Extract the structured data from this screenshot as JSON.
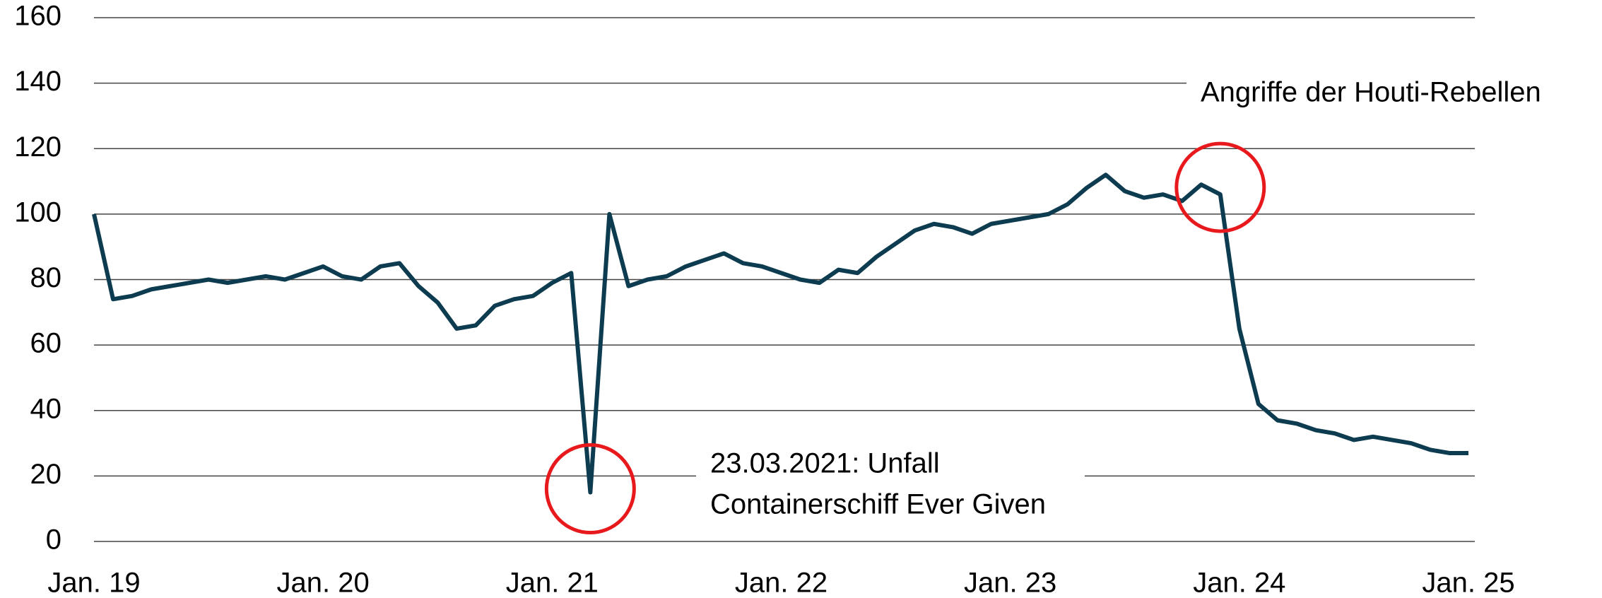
{
  "chart_data": {
    "type": "line",
    "categories": [
      "Jan. 19",
      null,
      null,
      null,
      null,
      null,
      null,
      null,
      null,
      null,
      null,
      null,
      "Jan. 20",
      null,
      null,
      null,
      null,
      null,
      null,
      null,
      null,
      null,
      null,
      null,
      "Jan. 21",
      null,
      null,
      null,
      null,
      null,
      null,
      null,
      null,
      null,
      null,
      null,
      "Jan. 22",
      null,
      null,
      null,
      null,
      null,
      null,
      null,
      null,
      null,
      null,
      null,
      "Jan. 23",
      null,
      null,
      null,
      null,
      null,
      null,
      null,
      null,
      null,
      null,
      null,
      "Jan. 24",
      null,
      null,
      null,
      null,
      null,
      null,
      null,
      null,
      null,
      null,
      null,
      "Jan. 25"
    ],
    "series": [
      {
        "color": "#0d3b4f",
        "values": [
          100,
          74,
          75,
          77,
          78,
          79,
          80,
          79,
          80,
          81,
          80,
          82,
          84,
          81,
          80,
          84,
          85,
          78,
          73,
          65,
          66,
          72,
          74,
          75,
          79,
          82,
          15,
          100,
          78,
          80,
          81,
          84,
          86,
          88,
          85,
          84,
          82,
          80,
          79,
          83,
          82,
          87,
          91,
          95,
          97,
          96,
          94,
          97,
          98,
          99,
          100,
          103,
          108,
          112,
          107,
          105,
          106,
          104,
          109,
          106,
          65,
          42,
          37,
          36,
          34,
          33,
          31,
          32,
          31,
          30,
          28,
          27,
          27
        ]
      }
    ],
    "ylim": [
      0,
      160
    ],
    "yticks": [
      0,
      20,
      40,
      60,
      80,
      100,
      120,
      140,
      160
    ],
    "grid": true,
    "annotations": [
      {
        "lines": [
          "Angriffe der Houti-Rebellen"
        ],
        "index": 59
      },
      {
        "lines": [
          "23.03.2021: Unfall",
          "Containerschiff Ever Given"
        ],
        "index": 26
      }
    ]
  }
}
